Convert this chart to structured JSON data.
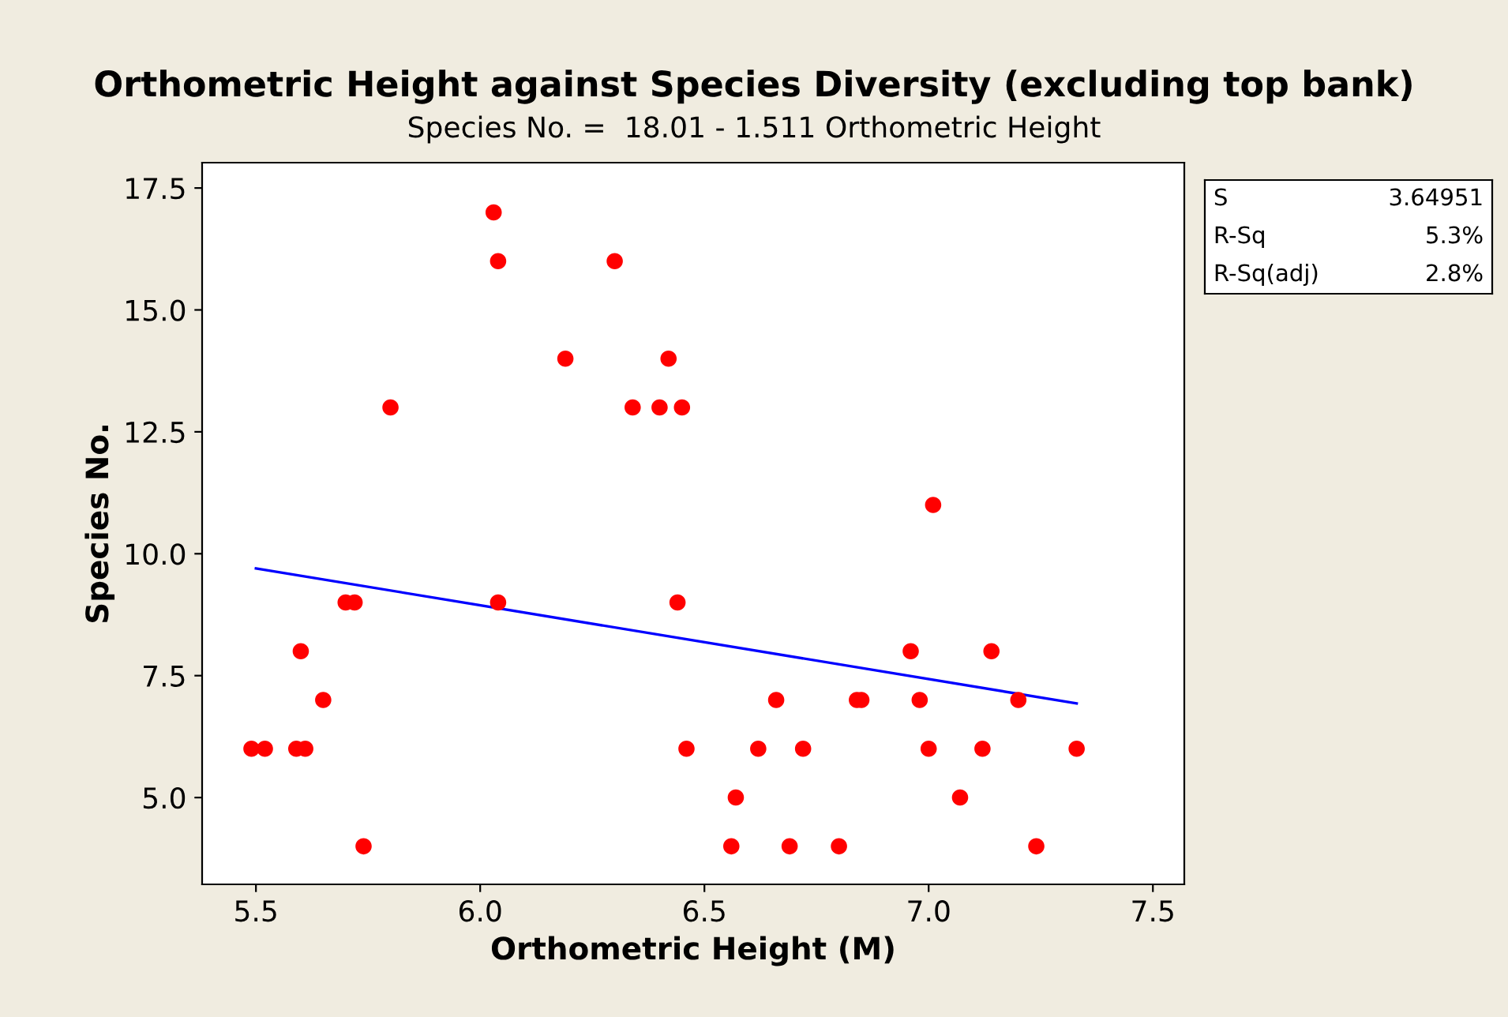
{
  "chart_data": {
    "type": "scatter",
    "title": "Orthometric Height against Species Diversity (excluding top bank)",
    "subtitle": "Species No. =  18.01 - 1.511 Orthometric Height",
    "xlabel": "Orthometric Height (M)",
    "ylabel": "Species No.",
    "series": [
      {
        "color": "#ff0000",
        "marker": "circle",
        "x": [
          5.49,
          5.52,
          5.6,
          5.59,
          5.61,
          5.65,
          5.7,
          5.72,
          5.74,
          5.8,
          6.03,
          6.04,
          6.04,
          6.19,
          6.3,
          6.34,
          6.4,
          6.42,
          6.45,
          6.44,
          6.46,
          6.57,
          6.56,
          6.62,
          6.66,
          6.69,
          6.72,
          6.8,
          6.84,
          6.85,
          6.96,
          6.98,
          7.01,
          7.0,
          7.07,
          7.12,
          7.14,
          7.2,
          7.24,
          7.33
        ],
        "values": [
          6,
          6,
          8,
          6,
          6,
          7,
          9,
          9,
          4,
          13,
          17,
          16,
          9,
          14,
          16,
          13,
          13,
          14,
          13,
          9,
          6,
          5,
          4,
          6,
          7,
          4,
          6,
          4,
          7,
          7,
          8,
          7,
          11,
          6,
          5,
          6,
          8,
          7,
          4,
          6
        ]
      },
      {
        "type": "line",
        "color": "#0000ff",
        "line_style": "solid",
        "x": [
          5.5,
          7.33
        ],
        "values": [
          9.7,
          6.93
        ]
      }
    ],
    "xlim": [
      5.38,
      7.57
    ],
    "ylim": [
      3.22,
      18.02
    ],
    "xticks": [
      5.5,
      {
        "value": 6,
        "label": "6.0"
      },
      6.5,
      {
        "value": 7,
        "label": "7.0"
      },
      7.5
    ],
    "yticks": [
      {
        "value": 5,
        "label": "5.0"
      },
      7.5,
      {
        "value": 10,
        "label": "10.0"
      },
      12.5,
      {
        "value": 15,
        "label": "15.0"
      },
      17.5
    ],
    "grid": false,
    "legend": false,
    "annotations": [
      "S",
      "3.64951",
      "R-Sq",
      "5.3%",
      "R-Sq(adj)",
      "2.8%"
    ]
  }
}
